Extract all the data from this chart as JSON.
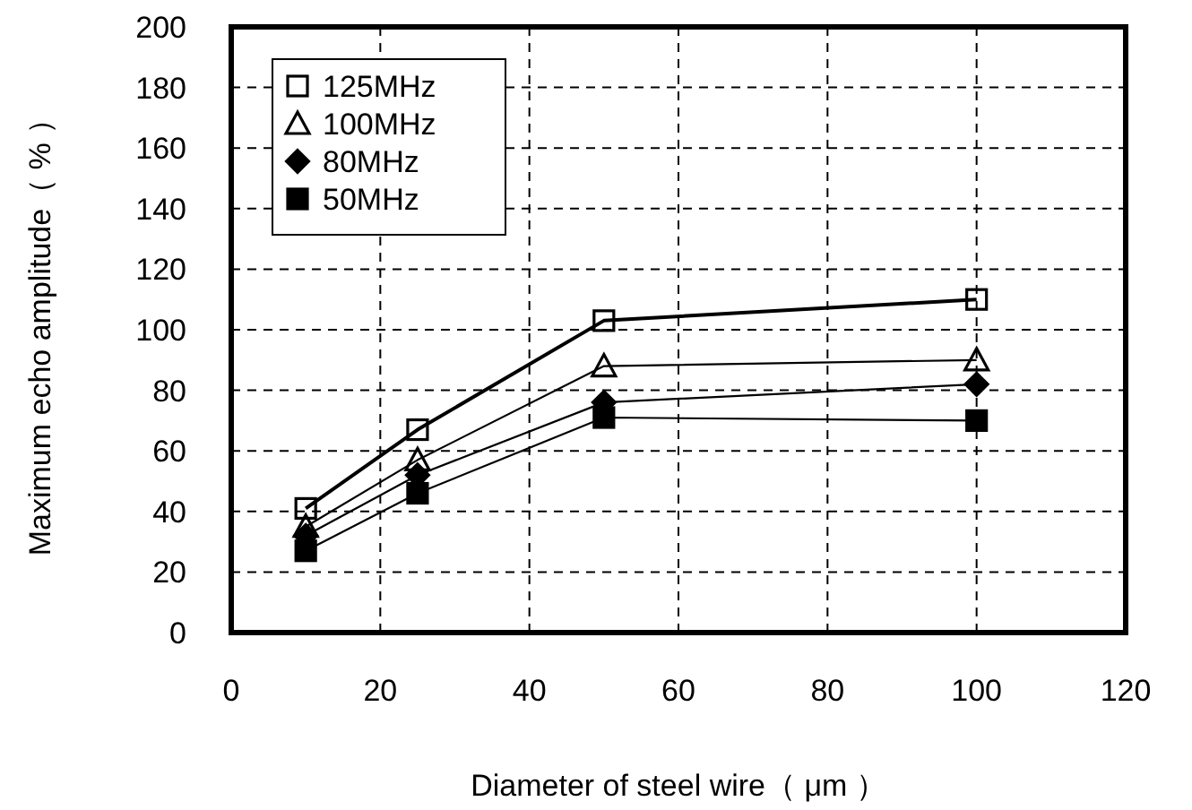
{
  "chart_data": {
    "type": "line",
    "xlabel": "Diameter of steel wire（ μm ）",
    "ylabel": "Maximum echo amplitude（ % ）",
    "x": [
      10,
      25,
      50,
      100
    ],
    "series": [
      {
        "name": "125MHz",
        "color": "#000000",
        "marker": "square",
        "values": [
          41,
          67,
          103,
          110
        ]
      },
      {
        "name": "100MHz",
        "color": "#000000",
        "marker": "triangle",
        "values": [
          35,
          57,
          88,
          90
        ]
      },
      {
        "name": "80MHz",
        "color": "#000000",
        "marker": "diamond",
        "values": [
          32,
          52,
          76,
          82
        ]
      },
      {
        "name": "50MHz",
        "color": "#000000",
        "marker": "square",
        "values": [
          27,
          46,
          71,
          70
        ]
      }
    ],
    "xlim": [
      0,
      120
    ],
    "xticks": [
      0,
      20,
      40,
      60,
      80,
      100,
      120
    ],
    "ylim": [
      0,
      200
    ],
    "yticks": [
      0,
      20,
      40,
      60,
      80,
      100,
      120,
      140,
      160,
      180,
      200
    ],
    "grid": true,
    "legend": "top left",
    "line_style": "solid"
  }
}
